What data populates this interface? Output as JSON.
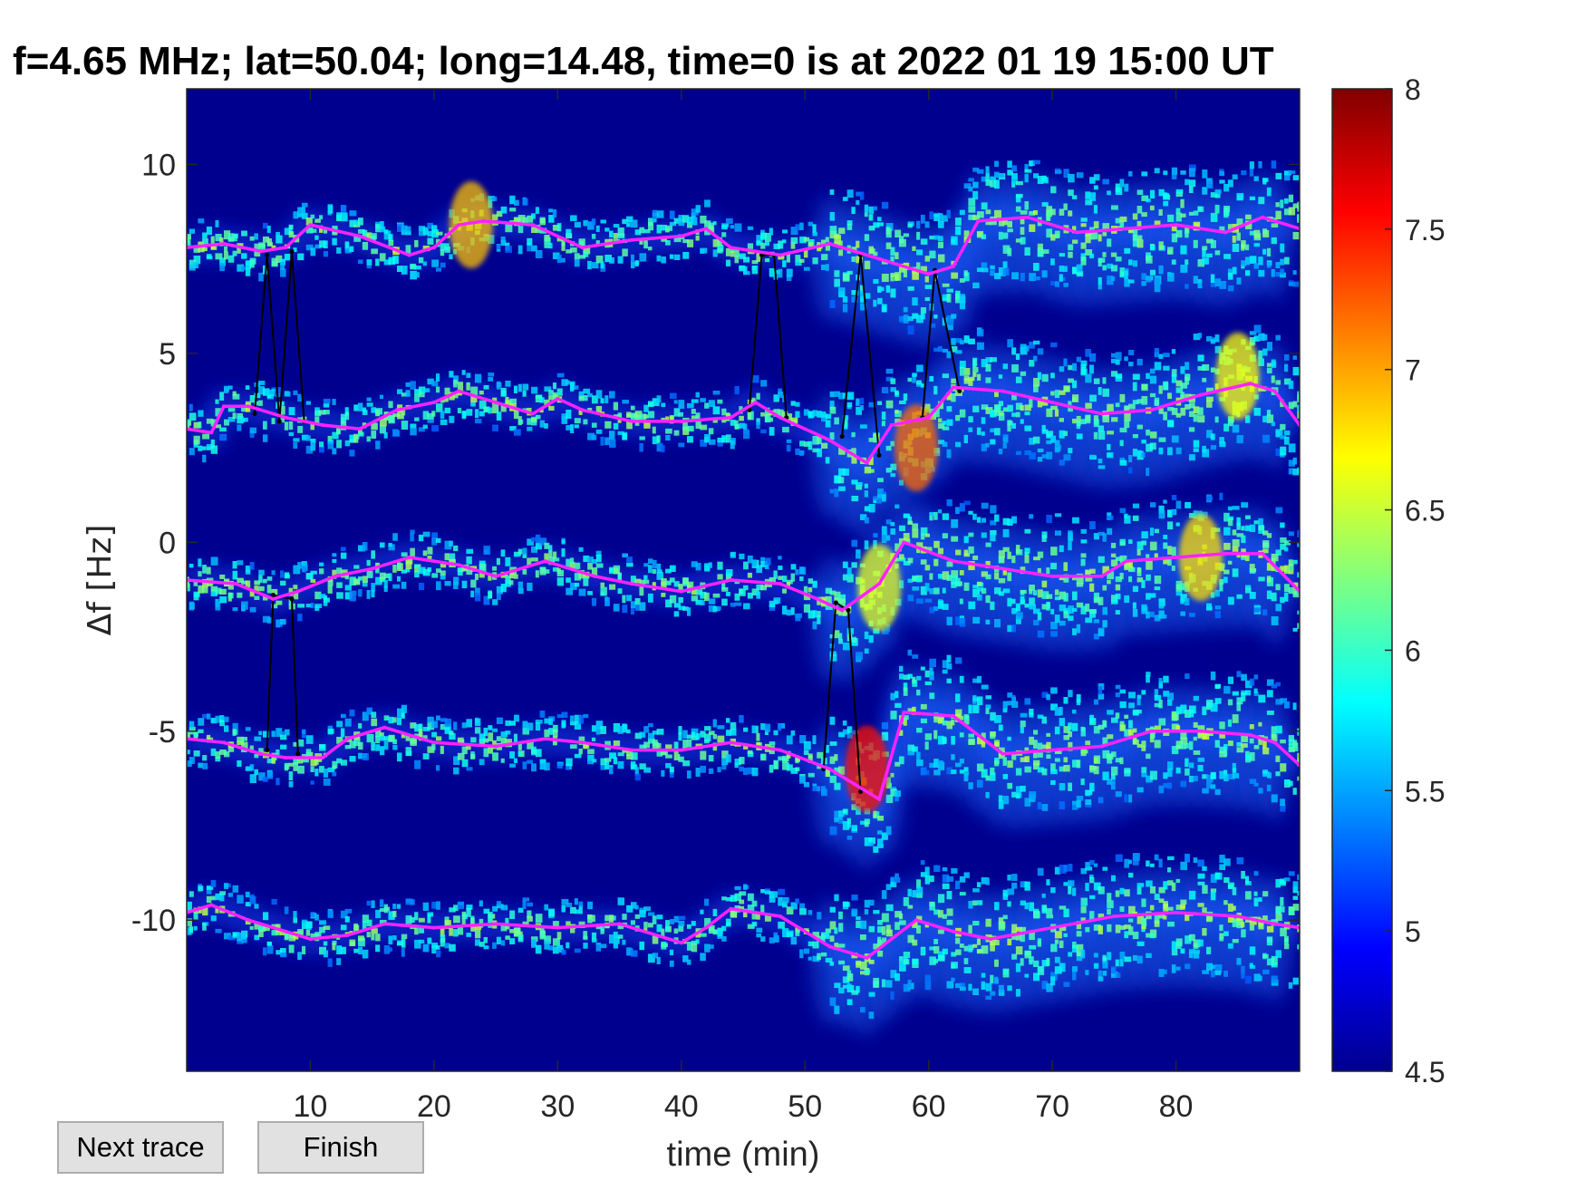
{
  "window": {
    "title": "f=4.65 MHz;  lat=50.04; long=14.48, time=0 is at 2022 01 19 15:00 UT"
  },
  "buttons": {
    "next_trace_label": "Next trace",
    "finish_label": "Finish"
  },
  "chart_data": {
    "type": "heatmap",
    "title": "f=4.65 MHz;  lat=50.04; long=14.48, time=0 is at 2022 01 19 15:00 UT",
    "xlabel": "time (min)",
    "ylabel": "Δf [Hz]",
    "xlim": [
      0,
      90
    ],
    "ylim": [
      -14,
      12
    ],
    "xticks": [
      10,
      20,
      30,
      40,
      50,
      60,
      70,
      80
    ],
    "yticks": [
      10,
      5,
      0,
      -5,
      -10
    ],
    "colormap": "jet",
    "colorbar": {
      "range": [
        4.5,
        8
      ],
      "ticks": [
        "8",
        "7.5",
        "7",
        "6.5",
        "6",
        "5.5",
        "5",
        "4.5"
      ]
    },
    "background_color": "#00008f",
    "trace_color": "#ff22ff",
    "alt_trace_color": "#000000",
    "traces": [
      {
        "x": [
          0,
          3,
          6,
          8,
          10,
          14,
          18,
          20,
          22,
          24,
          28,
          32,
          36,
          40,
          42,
          44,
          48,
          52,
          56,
          60,
          62,
          64,
          68,
          72,
          76,
          80,
          84,
          87,
          90
        ],
        "y": [
          7.8,
          7.9,
          7.7,
          7.8,
          8.4,
          8.1,
          7.6,
          7.8,
          8.4,
          8.5,
          8.4,
          7.8,
          8.0,
          8.1,
          8.3,
          7.8,
          7.6,
          7.9,
          7.5,
          7.1,
          7.3,
          8.5,
          8.6,
          8.2,
          8.3,
          8.4,
          8.2,
          8.6,
          8.3
        ]
      },
      {
        "x": [
          0,
          2,
          3,
          5,
          8,
          11,
          14,
          17,
          20,
          22,
          25,
          28,
          30,
          32,
          36,
          40,
          44,
          46,
          48,
          52,
          55,
          57,
          60,
          62,
          66,
          70,
          74,
          78,
          82,
          86,
          88,
          90
        ],
        "y": [
          3.0,
          2.9,
          3.6,
          3.6,
          3.3,
          3.1,
          3.0,
          3.5,
          3.7,
          4.0,
          3.7,
          3.4,
          3.8,
          3.5,
          3.2,
          3.2,
          3.3,
          3.7,
          3.3,
          2.7,
          2.1,
          3.1,
          3.3,
          4.1,
          4.0,
          3.7,
          3.4,
          3.5,
          3.9,
          4.2,
          4.0,
          3.1
        ]
      },
      {
        "x": [
          0,
          4,
          7,
          9,
          12,
          15,
          18,
          22,
          25,
          29,
          33,
          36,
          40,
          44,
          48,
          51,
          53,
          56,
          58,
          62,
          66,
          70,
          74,
          76,
          80,
          84,
          87,
          90
        ],
        "y": [
          -1.0,
          -1.1,
          -1.5,
          -1.3,
          -0.9,
          -0.7,
          -0.4,
          -0.6,
          -0.9,
          -0.5,
          -0.9,
          -1.1,
          -1.3,
          -1.0,
          -1.1,
          -1.5,
          -1.8,
          -1.1,
          0.0,
          -0.5,
          -0.7,
          -0.9,
          -0.9,
          -0.5,
          -0.4,
          -0.3,
          -0.3,
          -1.3
        ]
      },
      {
        "x": [
          0,
          3,
          6,
          8,
          11,
          13,
          16,
          20,
          25,
          29,
          32,
          36,
          40,
          44,
          48,
          52,
          54,
          56,
          58,
          62,
          66,
          70,
          74,
          78,
          82,
          86,
          88,
          90
        ],
        "y": [
          -5.2,
          -5.3,
          -5.6,
          -5.7,
          -5.7,
          -5.2,
          -4.9,
          -5.3,
          -5.4,
          -5.2,
          -5.3,
          -5.5,
          -5.5,
          -5.3,
          -5.5,
          -6.0,
          -6.4,
          -6.8,
          -4.5,
          -4.6,
          -5.6,
          -5.5,
          -5.4,
          -5.0,
          -5.0,
          -5.1,
          -5.3,
          -5.9
        ]
      },
      {
        "x": [
          0,
          2,
          5,
          8,
          10,
          13,
          16,
          20,
          25,
          30,
          35,
          40,
          42,
          44,
          48,
          52,
          55,
          57,
          59,
          62,
          65,
          70,
          75,
          80,
          85,
          88,
          90
        ],
        "y": [
          -9.8,
          -9.6,
          -10.0,
          -10.3,
          -10.5,
          -10.4,
          -10.1,
          -10.2,
          -10.1,
          -10.2,
          -10.1,
          -10.6,
          -10.2,
          -9.7,
          -9.9,
          -10.7,
          -11.0,
          -10.5,
          -10.0,
          -10.3,
          -10.5,
          -10.2,
          -9.9,
          -9.8,
          -9.9,
          -10.1,
          -10.2
        ]
      }
    ],
    "hotspots": [
      {
        "x": 59,
        "y": 2.5,
        "level": 7.2
      },
      {
        "x": 55,
        "y": -6.0,
        "level": 7.5
      },
      {
        "x": 56,
        "y": -1.2,
        "level": 6.6
      },
      {
        "x": 82,
        "y": -0.4,
        "level": 6.8
      },
      {
        "x": 85,
        "y": 4.4,
        "level": 6.7
      },
      {
        "x": 23,
        "y": 8.4,
        "level": 6.9
      }
    ],
    "jumps": [
      {
        "x": [
          5.5,
          6.5,
          7.5,
          8.5,
          9.5
        ],
        "y": [
          3.4,
          7.6,
          3.2,
          7.7,
          3.2
        ]
      },
      {
        "x": [
          45.5,
          46.5,
          47.5,
          48.5
        ],
        "y": [
          3.5,
          7.6,
          7.6,
          3.3
        ]
      },
      {
        "x": [
          53,
          54.5,
          56
        ],
        "y": [
          2.8,
          7.6,
          2.3
        ]
      },
      {
        "x": [
          59.5,
          60.5,
          62.5
        ],
        "y": [
          3.3,
          7.2,
          4.0
        ]
      },
      {
        "x": [
          6.5,
          7.0,
          8.5,
          9.0
        ],
        "y": [
          -5.5,
          -1.4,
          -1.5,
          -5.6
        ]
      },
      {
        "x": [
          51.5,
          52.5,
          53.5,
          54.5
        ],
        "y": [
          -6.0,
          -1.6,
          -1.8,
          -6.6
        ]
      }
    ]
  }
}
